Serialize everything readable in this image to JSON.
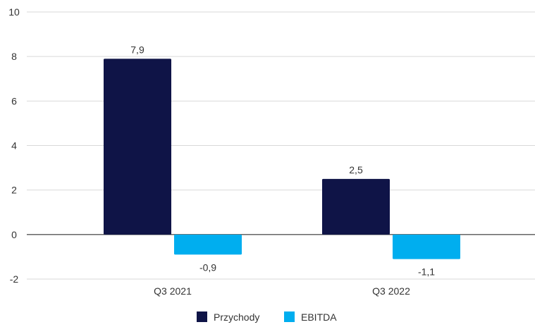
{
  "chart_data": {
    "type": "bar",
    "categories": [
      "Q3 2021",
      "Q3 2022"
    ],
    "series": [
      {
        "name": "Przychody",
        "color": "#0f1447",
        "values": [
          7.9,
          2.5
        ],
        "labels": [
          "7,9",
          "2,5"
        ]
      },
      {
        "name": "EBITDA",
        "color": "#00aeef",
        "values": [
          -0.9,
          -1.1
        ],
        "labels": [
          "-0,9",
          "-1,1"
        ]
      }
    ],
    "ylim": [
      -2,
      10
    ],
    "yticks": [
      10,
      8,
      6,
      4,
      2,
      0,
      -2
    ],
    "ytick_labels": [
      "10",
      "8",
      "6",
      "4",
      "2",
      "0",
      "-2"
    ],
    "grid": true,
    "legend_position": "bottom",
    "title": "",
    "xlabel": "",
    "ylabel": ""
  }
}
